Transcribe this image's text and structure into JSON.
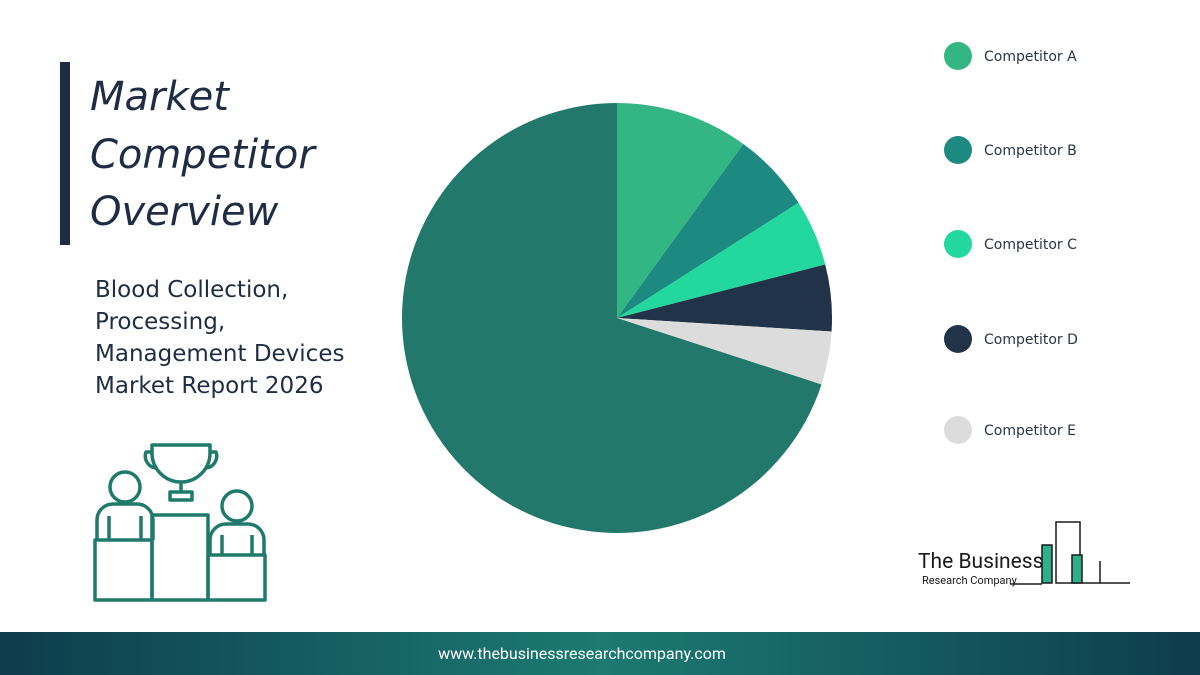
{
  "header": {
    "title_lines": [
      "Market",
      "Competitor",
      "Overview"
    ],
    "subtitle_lines": [
      "Blood Collection,",
      "Processing,",
      "Management Devices",
      "Market Report 2026"
    ]
  },
  "chart_data": {
    "type": "pie",
    "categories": [
      "Competitor A",
      "Competitor B",
      "Competitor C",
      "Competitor D",
      "Competitor E",
      null
    ],
    "values": [
      10,
      6,
      5,
      5,
      4,
      70
    ],
    "colors": [
      "#34b584",
      "#1c8a80",
      "#22d89c",
      "#213349",
      "#dcdcdc",
      "#22786a"
    ],
    "legend": "right"
  },
  "logo": {
    "name": "The Business",
    "tagline": "Research Company"
  },
  "footer": {
    "url": "www.thebusinessresearchcompany.com"
  }
}
